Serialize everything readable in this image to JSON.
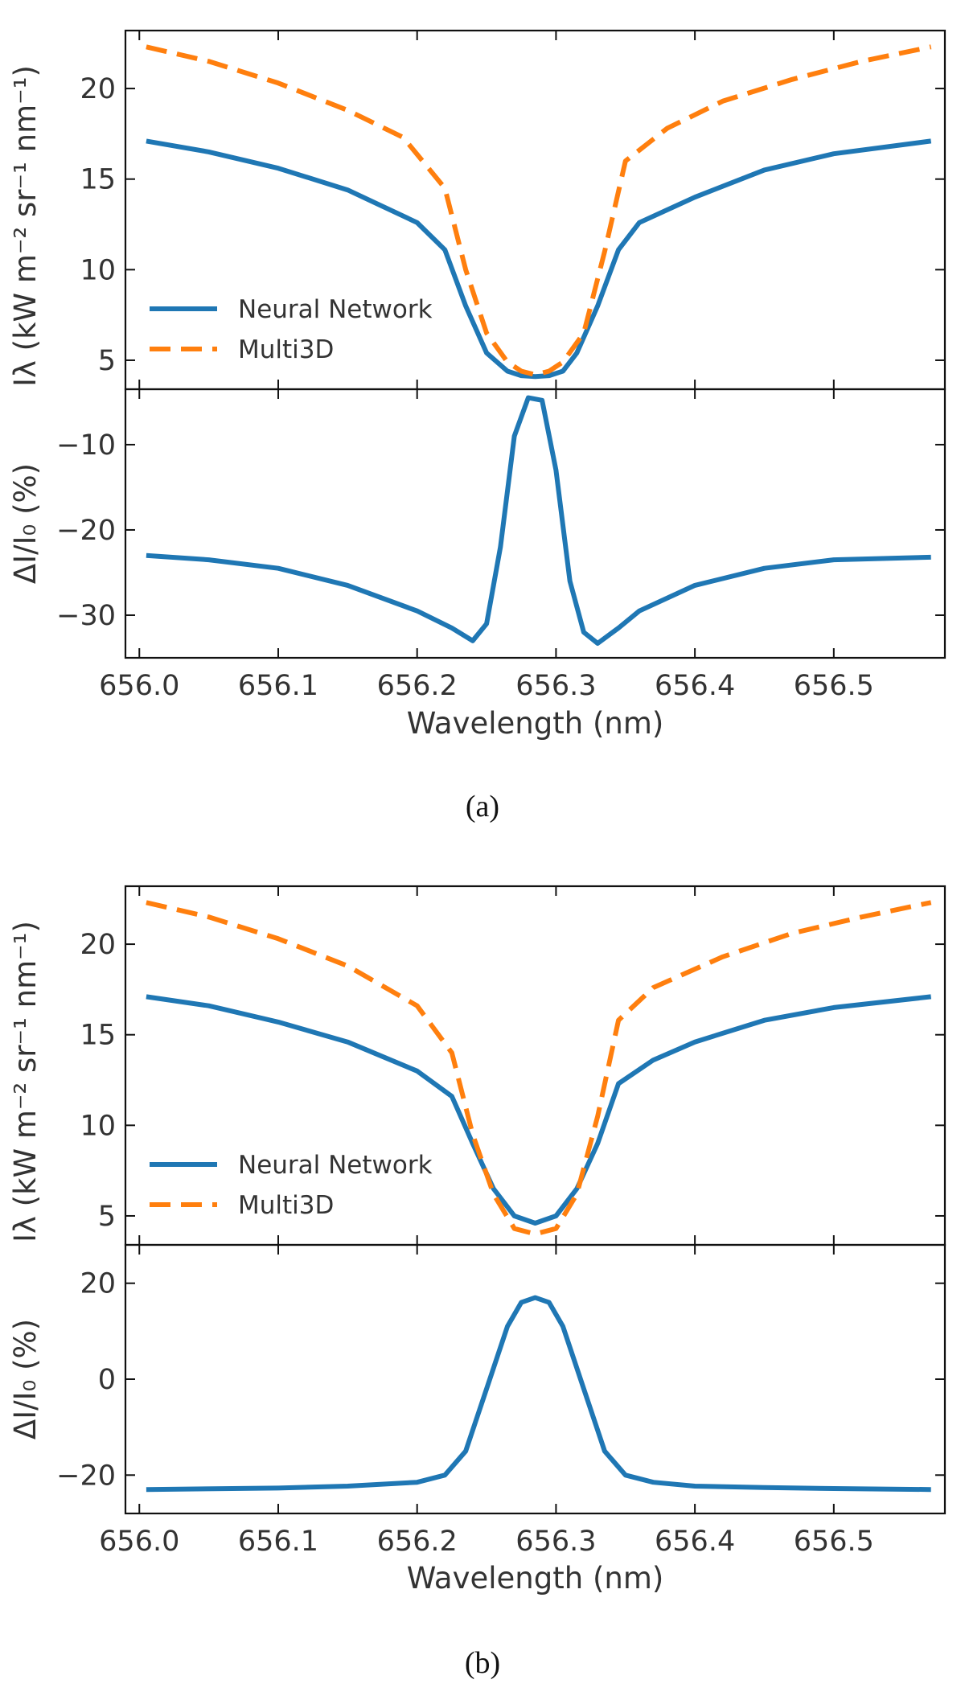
{
  "figure": {
    "panels": [
      {
        "caption": "(a)",
        "xlabel": "Wavelength (nm)",
        "top_ylabel": "Iλ (kW m⁻² sr⁻¹ nm⁻¹)",
        "bottom_ylabel": "ΔI/I₀ (%)",
        "legend": [
          "Neural Network",
          "Multi3D"
        ]
      },
      {
        "caption": "(b)",
        "xlabel": "Wavelength (nm)",
        "top_ylabel": "Iλ (kW m⁻² sr⁻¹ nm⁻¹)",
        "bottom_ylabel": "ΔI/I₀ (%)",
        "legend": [
          "Neural Network",
          "Multi3D"
        ]
      }
    ],
    "colors": {
      "neural_network": "#1f77b4",
      "multi3d": "#ff7f0e"
    }
  },
  "chart_data": [
    {
      "type": "line",
      "panel": "(a) top",
      "xlabel": "",
      "ylabel": "Iλ (kW m⁻² sr⁻¹ nm⁻¹)",
      "xlim": [
        655.99,
        656.58
      ],
      "ylim": [
        3.4,
        23.2
      ],
      "xticks": [
        656.0,
        656.1,
        656.2,
        656.3,
        656.4,
        656.5
      ],
      "yticks": [
        5,
        10,
        15,
        20
      ],
      "legend_position": "lower-left",
      "series": [
        {
          "name": "Neural Network",
          "style": "solid",
          "x": [
            656.005,
            656.05,
            656.1,
            656.15,
            656.2,
            656.22,
            656.235,
            656.25,
            656.265,
            656.275,
            656.285,
            656.295,
            656.305,
            656.315,
            656.33,
            656.345,
            656.36,
            656.4,
            656.45,
            656.5,
            656.57
          ],
          "y": [
            17.1,
            16.5,
            15.6,
            14.4,
            12.6,
            11.1,
            8.0,
            5.4,
            4.4,
            4.15,
            4.1,
            4.15,
            4.4,
            5.4,
            8.0,
            11.1,
            12.6,
            14.0,
            15.5,
            16.4,
            17.1
          ]
        },
        {
          "name": "Multi3D",
          "style": "dashed",
          "x": [
            656.005,
            656.05,
            656.1,
            656.15,
            656.19,
            656.22,
            656.235,
            656.25,
            656.265,
            656.275,
            656.285,
            656.295,
            656.305,
            656.32,
            656.335,
            656.35,
            656.38,
            656.42,
            656.47,
            656.52,
            656.57
          ],
          "y": [
            22.3,
            21.5,
            20.3,
            18.8,
            17.3,
            14.5,
            10.0,
            6.5,
            4.9,
            4.4,
            4.2,
            4.4,
            4.9,
            6.5,
            11.0,
            16.0,
            17.8,
            19.3,
            20.5,
            21.5,
            22.3
          ]
        }
      ]
    },
    {
      "type": "line",
      "panel": "(a) bottom",
      "xlabel": "Wavelength (nm)",
      "ylabel": "ΔI/I₀ (%)",
      "xlim": [
        655.99,
        656.58
      ],
      "ylim": [
        -35,
        -3.5
      ],
      "xticks": [
        656.0,
        656.1,
        656.2,
        656.3,
        656.4,
        656.5
      ],
      "yticks": [
        -30,
        -20,
        -10
      ],
      "series": [
        {
          "name": "",
          "style": "solid",
          "x": [
            656.005,
            656.05,
            656.1,
            656.15,
            656.2,
            656.225,
            656.24,
            656.25,
            656.26,
            656.27,
            656.28,
            656.29,
            656.3,
            656.31,
            656.32,
            656.33,
            656.345,
            656.36,
            656.4,
            656.45,
            656.5,
            656.57
          ],
          "y": [
            -23.0,
            -23.5,
            -24.5,
            -26.5,
            -29.5,
            -31.5,
            -33.0,
            -31.0,
            -22.0,
            -9.0,
            -4.5,
            -4.8,
            -13.0,
            -26.0,
            -32.0,
            -33.3,
            -31.5,
            -29.5,
            -26.5,
            -24.5,
            -23.5,
            -23.2
          ]
        }
      ]
    },
    {
      "type": "line",
      "panel": "(b) top",
      "xlabel": "",
      "ylabel": "Iλ (kW m⁻² sr⁻¹ nm⁻¹)",
      "xlim": [
        655.99,
        656.58
      ],
      "ylim": [
        3.4,
        23.2
      ],
      "xticks": [
        656.0,
        656.1,
        656.2,
        656.3,
        656.4,
        656.5
      ],
      "yticks": [
        5,
        10,
        15,
        20
      ],
      "legend_position": "lower-left",
      "series": [
        {
          "name": "Neural Network",
          "style": "solid",
          "x": [
            656.005,
            656.05,
            656.1,
            656.15,
            656.2,
            656.225,
            656.24,
            656.255,
            656.27,
            656.285,
            656.3,
            656.315,
            656.33,
            656.345,
            656.37,
            656.4,
            656.45,
            656.5,
            656.57
          ],
          "y": [
            17.1,
            16.6,
            15.7,
            14.6,
            13.0,
            11.6,
            9.0,
            6.5,
            5.0,
            4.6,
            5.0,
            6.5,
            9.0,
            12.3,
            13.6,
            14.6,
            15.8,
            16.5,
            17.1
          ]
        },
        {
          "name": "Multi3D",
          "style": "dashed",
          "x": [
            656.005,
            656.05,
            656.1,
            656.15,
            656.2,
            656.225,
            656.24,
            656.255,
            656.27,
            656.285,
            656.3,
            656.315,
            656.33,
            656.345,
            656.37,
            656.42,
            656.47,
            656.52,
            656.57
          ],
          "y": [
            22.3,
            21.5,
            20.3,
            18.8,
            16.6,
            14.0,
            9.5,
            6.2,
            4.3,
            4.0,
            4.3,
            6.2,
            10.5,
            15.8,
            17.6,
            19.3,
            20.6,
            21.5,
            22.3
          ]
        }
      ]
    },
    {
      "type": "line",
      "panel": "(b) bottom",
      "xlabel": "Wavelength (nm)",
      "ylabel": "ΔI/I₀ (%)",
      "xlim": [
        655.99,
        656.58
      ],
      "ylim": [
        -28,
        28
      ],
      "xticks": [
        656.0,
        656.1,
        656.2,
        656.3,
        656.4,
        656.5
      ],
      "yticks": [
        -20,
        0,
        20
      ],
      "series": [
        {
          "name": "",
          "style": "solid",
          "x": [
            656.005,
            656.1,
            656.15,
            656.2,
            656.22,
            656.235,
            656.25,
            656.265,
            656.275,
            656.285,
            656.295,
            656.305,
            656.32,
            656.335,
            656.35,
            656.37,
            656.4,
            656.45,
            656.5,
            656.57
          ],
          "y": [
            -23.0,
            -22.7,
            -22.3,
            -21.5,
            -20.0,
            -15.0,
            -2.0,
            11.0,
            16.0,
            17.0,
            16.0,
            11.0,
            -2.0,
            -15.0,
            -20.0,
            -21.5,
            -22.3,
            -22.6,
            -22.8,
            -23.0
          ]
        }
      ]
    }
  ]
}
